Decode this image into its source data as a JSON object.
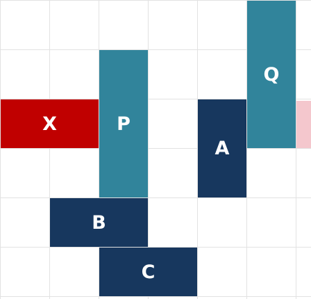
{
  "board": {
    "columns": 6,
    "rows": 6,
    "exit_row": 2,
    "grid_color": "#e2e2e2",
    "exit_color": "#f4c7cd"
  },
  "blocks": [
    {
      "id": "x-block",
      "label": "X",
      "col": 0,
      "row": 2,
      "width": 2,
      "height": 1,
      "color": "#c00000",
      "role": "target"
    },
    {
      "id": "p-block",
      "label": "P",
      "col": 2,
      "row": 1,
      "width": 1,
      "height": 3,
      "color": "#31849b",
      "role": "vertical"
    },
    {
      "id": "a-block",
      "label": "A",
      "col": 4,
      "row": 2,
      "width": 1,
      "height": 2,
      "color": "#17375e",
      "role": "vertical"
    },
    {
      "id": "q-block",
      "label": "Q",
      "col": 5,
      "row": 0,
      "width": 1,
      "height": 3,
      "color": "#31849b",
      "role": "vertical"
    },
    {
      "id": "b-block",
      "label": "B",
      "col": 1,
      "row": 4,
      "width": 2,
      "height": 1,
      "color": "#17375e",
      "role": "horizontal"
    },
    {
      "id": "c-block",
      "label": "C",
      "col": 2,
      "row": 5,
      "width": 2,
      "height": 1,
      "color": "#17375e",
      "role": "horizontal"
    }
  ]
}
